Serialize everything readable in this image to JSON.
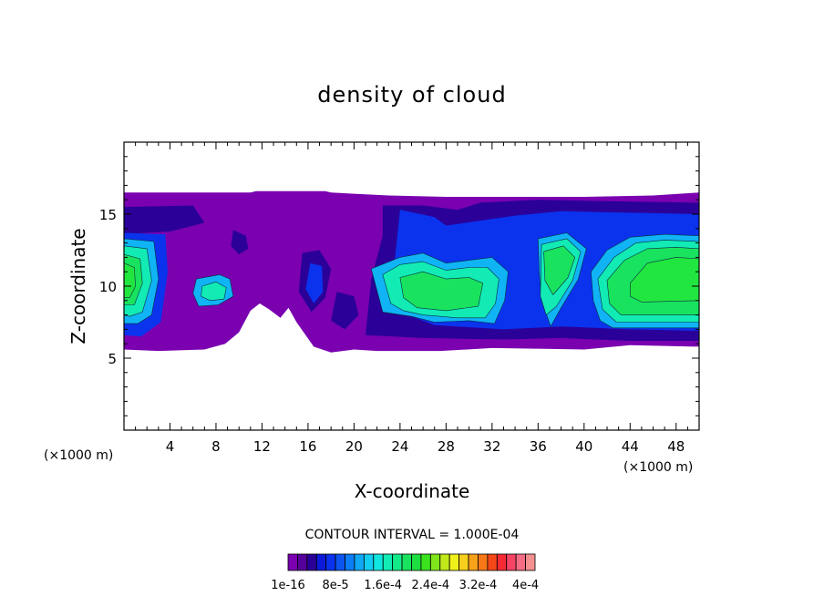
{
  "chart_data": {
    "type": "heatmap",
    "title": "density of cloud",
    "xlabel": "X-coordinate",
    "ylabel": "Z-coordinate",
    "x_unit": "(×1000 m)",
    "xlim": [
      0,
      50
    ],
    "ylim": [
      0,
      20
    ],
    "x_ticks": [
      4,
      8,
      12,
      16,
      20,
      24,
      28,
      32,
      36,
      40,
      44,
      48
    ],
    "y_ticks": [
      5,
      10,
      15
    ],
    "contour_interval_text": "CONTOUR INTERVAL = 1.000E-04",
    "colorbar": {
      "colors": [
        "#7a00b0",
        "#55009a",
        "#2a0098",
        "#0d1ad9",
        "#0b33ee",
        "#0d55f0",
        "#0b7df5",
        "#10a8f5",
        "#12ccf2",
        "#10e6df",
        "#12ebb4",
        "#14e988",
        "#19e35e",
        "#1edd40",
        "#3be21e",
        "#80e51a",
        "#c0e81a",
        "#f0f01a",
        "#f7cf1c",
        "#f8a21a",
        "#f87818",
        "#f44818",
        "#f62a34",
        "#f54466",
        "#f56e86",
        "#f59090"
      ],
      "tick_labels": [
        "1e-16",
        "8e-5",
        "1.6e-4",
        "2.4e-4",
        "3.2e-4",
        "4e-4"
      ]
    },
    "cloud_regions": [
      {
        "level": 0,
        "polygon": [
          [
            0,
            16.5
          ],
          [
            11,
            16.5
          ],
          [
            11.5,
            16.6
          ],
          [
            17.5,
            16.6
          ],
          [
            18,
            16.5
          ],
          [
            23,
            16.3
          ],
          [
            28,
            16.2
          ],
          [
            40,
            16.2
          ],
          [
            46,
            16.3
          ],
          [
            50,
            16.5
          ],
          [
            50,
            5.8
          ],
          [
            44,
            5.9
          ],
          [
            40,
            5.6
          ],
          [
            32,
            5.7
          ],
          [
            27.5,
            5.5
          ],
          [
            22,
            5.5
          ],
          [
            20,
            5.6
          ],
          [
            18,
            5.4
          ],
          [
            16.5,
            5.8
          ],
          [
            15,
            7.5
          ],
          [
            14.3,
            8.5
          ],
          [
            13.6,
            7.8
          ],
          [
            12.6,
            8.4
          ],
          [
            11.8,
            8.8
          ],
          [
            11,
            8.3
          ],
          [
            10,
            6.8
          ],
          [
            8.8,
            6.0
          ],
          [
            7,
            5.6
          ],
          [
            3,
            5.5
          ],
          [
            0,
            5.6
          ]
        ]
      },
      {
        "level": 1,
        "polygon": [
          [
            0,
            15.5
          ],
          [
            6,
            15.6
          ],
          [
            7,
            14.4
          ],
          [
            4,
            13.8
          ],
          [
            0,
            13.6
          ]
        ]
      },
      {
        "level": 1,
        "polygon": [
          [
            22.5,
            15.6
          ],
          [
            26,
            15.6
          ],
          [
            29,
            15.3
          ],
          [
            31,
            15.8
          ],
          [
            36,
            16.0
          ],
          [
            42,
            15.9
          ],
          [
            50,
            15.8
          ],
          [
            50,
            6.2
          ],
          [
            44,
            6.2
          ],
          [
            38,
            6.4
          ],
          [
            33,
            6.3
          ],
          [
            26,
            6.4
          ],
          [
            21,
            6.6
          ],
          [
            21.5,
            10.5
          ],
          [
            22.5,
            13.5
          ]
        ]
      },
      {
        "level": 1,
        "polygon": [
          [
            9.5,
            13.9
          ],
          [
            10.6,
            13.5
          ],
          [
            10.8,
            12.6
          ],
          [
            10.0,
            12.2
          ],
          [
            9.3,
            12.8
          ]
        ]
      },
      {
        "level": 1,
        "polygon": [
          [
            15.5,
            12.3
          ],
          [
            17,
            12.5
          ],
          [
            18,
            11.2
          ],
          [
            17.5,
            9.2
          ],
          [
            16.3,
            8.2
          ],
          [
            15.2,
            9.6
          ]
        ]
      },
      {
        "level": 1,
        "polygon": [
          [
            18.5,
            9.6
          ],
          [
            20,
            9.3
          ],
          [
            20.4,
            8.0
          ],
          [
            19.2,
            7.0
          ],
          [
            18.0,
            7.6
          ]
        ]
      },
      {
        "level": 2,
        "polygon": [
          [
            24,
            15.3
          ],
          [
            27,
            14.8
          ],
          [
            28,
            14.2
          ],
          [
            34,
            14.9
          ],
          [
            38,
            15.2
          ],
          [
            44,
            15.1
          ],
          [
            50,
            15.0
          ],
          [
            50,
            6.9
          ],
          [
            44,
            7.0
          ],
          [
            38,
            7.2
          ],
          [
            33,
            7.0
          ],
          [
            27,
            7.3
          ],
          [
            24,
            8.2
          ],
          [
            23.5,
            11.5
          ]
        ]
      },
      {
        "level": 2,
        "polygon": [
          [
            0,
            13.7
          ],
          [
            3.6,
            13.6
          ],
          [
            3.8,
            11
          ],
          [
            3.2,
            7.5
          ],
          [
            1.5,
            6.5
          ],
          [
            0,
            6.6
          ]
        ]
      },
      {
        "level": 2,
        "polygon": [
          [
            16.2,
            11.6
          ],
          [
            17.2,
            11.4
          ],
          [
            17.3,
            9.6
          ],
          [
            16.5,
            8.8
          ],
          [
            15.8,
            9.8
          ]
        ]
      },
      {
        "level": 3,
        "polygon": [
          [
            21.5,
            11.2
          ],
          [
            24,
            12.0
          ],
          [
            26,
            12.3
          ],
          [
            28,
            11.6
          ],
          [
            30,
            11.8
          ],
          [
            32,
            12.0
          ],
          [
            33.4,
            11.0
          ],
          [
            33.1,
            9.0
          ],
          [
            32.2,
            7.4
          ],
          [
            30,
            7.6
          ],
          [
            27,
            7.5
          ],
          [
            25,
            7.9
          ],
          [
            22.5,
            8.2
          ]
        ]
      },
      {
        "level": 3,
        "polygon": [
          [
            36,
            13.3
          ],
          [
            38.5,
            13.7
          ],
          [
            40.2,
            12.6
          ],
          [
            39.5,
            10.5
          ],
          [
            38.0,
            8.5
          ],
          [
            37.1,
            7.2
          ],
          [
            36.3,
            9.0
          ],
          [
            36.1,
            11.0
          ]
        ]
      },
      {
        "level": 3,
        "polygon": [
          [
            40.6,
            11.0
          ],
          [
            42,
            12.5
          ],
          [
            44,
            13.4
          ],
          [
            47,
            13.6
          ],
          [
            50,
            13.5
          ],
          [
            50,
            7.1
          ],
          [
            42.5,
            7.1
          ],
          [
            41.4,
            7.6
          ],
          [
            40.8,
            9.0
          ]
        ]
      },
      {
        "level": 3,
        "polygon": [
          [
            6.3,
            10.5
          ],
          [
            8.3,
            10.8
          ],
          [
            9.2,
            10.5
          ],
          [
            9.5,
            9.3
          ],
          [
            8.2,
            8.7
          ],
          [
            6.5,
            8.6
          ],
          [
            6.0,
            9.5
          ]
        ]
      },
      {
        "level": 3,
        "polygon": [
          [
            0,
            13.3
          ],
          [
            2.6,
            13.1
          ],
          [
            3.0,
            10.5
          ],
          [
            2.4,
            8.0
          ],
          [
            1.2,
            7.4
          ],
          [
            0,
            7.4
          ]
        ]
      },
      {
        "level": 4,
        "polygon": [
          [
            22.5,
            10.8
          ],
          [
            24,
            11.5
          ],
          [
            26,
            11.7
          ],
          [
            28,
            11.1
          ],
          [
            30,
            11.3
          ],
          [
            31.6,
            11.3
          ],
          [
            32.6,
            10.5
          ],
          [
            32.3,
            8.8
          ],
          [
            31.4,
            7.8
          ],
          [
            29,
            7.8
          ],
          [
            26,
            8.0
          ],
          [
            24.3,
            8.3
          ],
          [
            23.2,
            8.8
          ]
        ]
      },
      {
        "level": 4,
        "polygon": [
          [
            36.3,
            12.9
          ],
          [
            38.5,
            13.3
          ],
          [
            39.7,
            12.4
          ],
          [
            39.0,
            10.4
          ],
          [
            37.6,
            8.6
          ],
          [
            36.7,
            8.0
          ],
          [
            36.2,
            9.3
          ]
        ]
      },
      {
        "level": 4,
        "polygon": [
          [
            41.2,
            10.5
          ],
          [
            42.6,
            12.0
          ],
          [
            44.5,
            13.0
          ],
          [
            47,
            13.2
          ],
          [
            50,
            13.1
          ],
          [
            50,
            7.5
          ],
          [
            42.8,
            7.5
          ],
          [
            41.6,
            8.4
          ]
        ]
      },
      {
        "level": 4,
        "polygon": [
          [
            0,
            12.8
          ],
          [
            2.0,
            12.6
          ],
          [
            2.4,
            10.4
          ],
          [
            1.6,
            8.2
          ],
          [
            0.5,
            7.9
          ],
          [
            0,
            8.0
          ]
        ]
      },
      {
        "level": 4,
        "polygon": [
          [
            6.8,
            10.0
          ],
          [
            8.0,
            10.3
          ],
          [
            8.9,
            9.9
          ],
          [
            8.7,
            9.1
          ],
          [
            7.5,
            9.0
          ],
          [
            6.7,
            9.3
          ]
        ]
      },
      {
        "level": 5,
        "polygon": [
          [
            24,
            10.6
          ],
          [
            26,
            11.0
          ],
          [
            28,
            10.5
          ],
          [
            30,
            10.6
          ],
          [
            31.2,
            10.2
          ],
          [
            30.8,
            8.6
          ],
          [
            28,
            8.3
          ],
          [
            25.5,
            8.5
          ],
          [
            24.3,
            9.2
          ]
        ]
      },
      {
        "level": 5,
        "polygon": [
          [
            36.5,
            12.4
          ],
          [
            38.2,
            12.8
          ],
          [
            39.2,
            12.0
          ],
          [
            38.6,
            10.6
          ],
          [
            37.3,
            9.4
          ],
          [
            36.6,
            10.4
          ]
        ]
      },
      {
        "level": 5,
        "polygon": [
          [
            42.0,
            10.4
          ],
          [
            43.5,
            11.8
          ],
          [
            45.5,
            12.6
          ],
          [
            48,
            12.7
          ],
          [
            50,
            12.6
          ],
          [
            50,
            8.0
          ],
          [
            43.2,
            8.0
          ],
          [
            42.2,
            8.8
          ]
        ]
      },
      {
        "level": 5,
        "polygon": [
          [
            0,
            12.2
          ],
          [
            1.4,
            11.9
          ],
          [
            1.6,
            10.2
          ],
          [
            0.9,
            8.7
          ],
          [
            0,
            8.7
          ]
        ]
      },
      {
        "level": 6,
        "polygon": [
          [
            44,
            10.2
          ],
          [
            45.5,
            11.6
          ],
          [
            48,
            12.0
          ],
          [
            50,
            11.9
          ],
          [
            50,
            9.0
          ],
          [
            45,
            8.9
          ],
          [
            44,
            9.3
          ]
        ]
      },
      {
        "level": 6,
        "polygon": [
          [
            0,
            11.6
          ],
          [
            0.9,
            11.3
          ],
          [
            1.0,
            10.0
          ],
          [
            0.5,
            9.2
          ],
          [
            0,
            9.2
          ]
        ]
      }
    ]
  }
}
